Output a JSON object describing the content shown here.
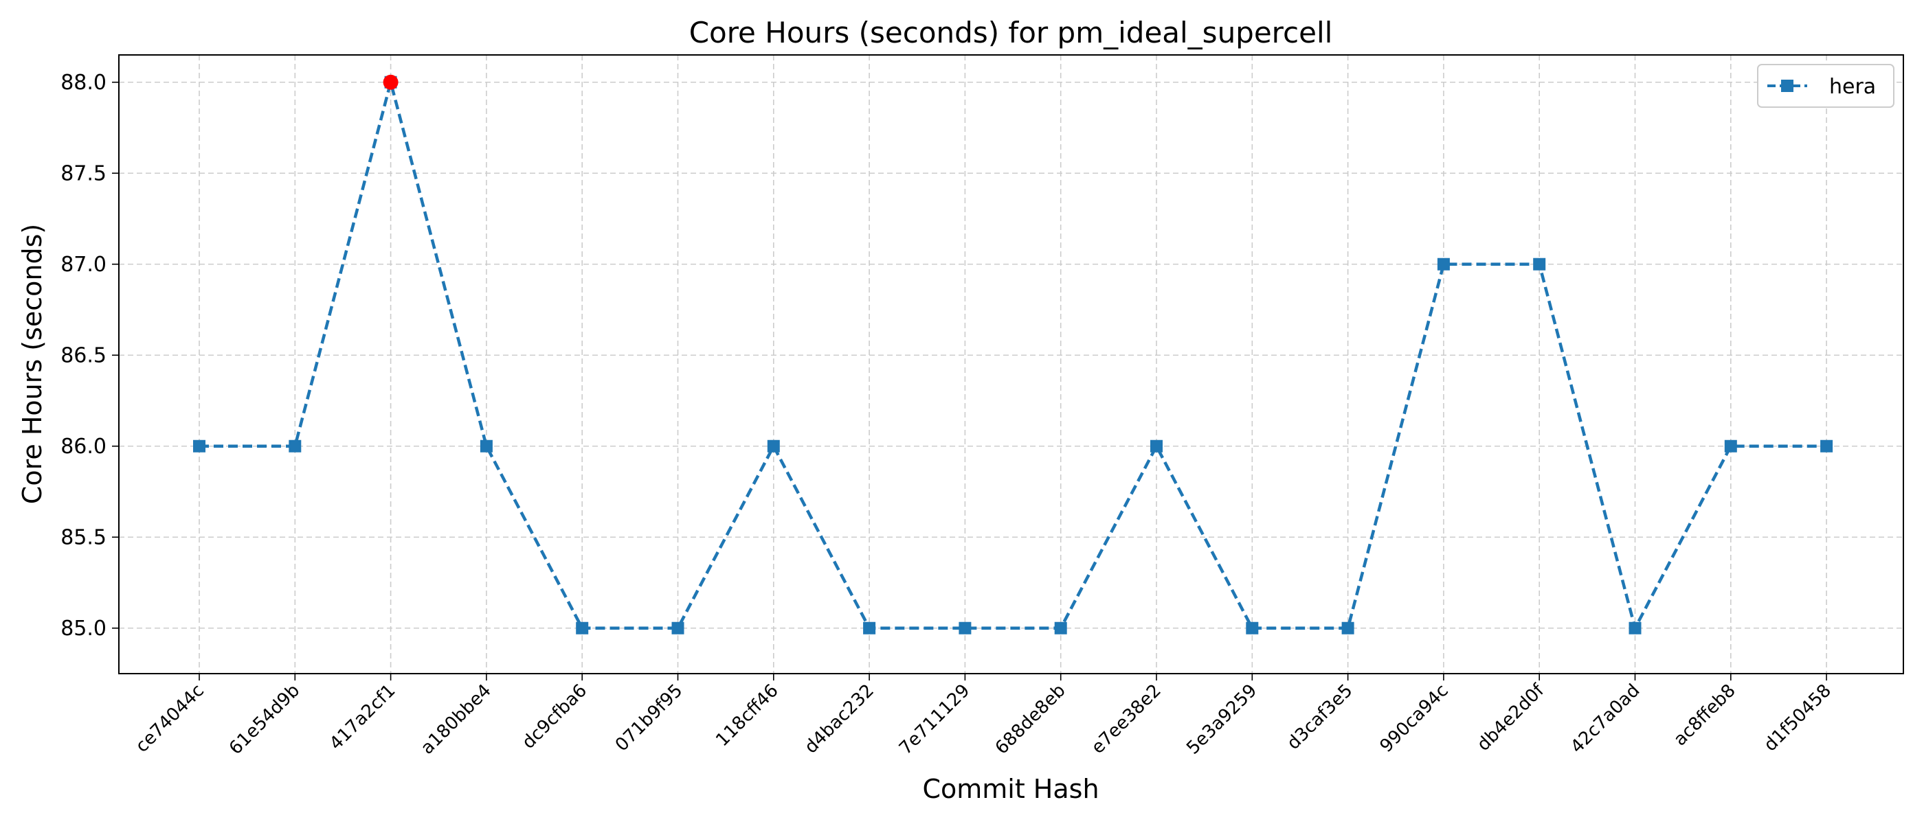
{
  "chart_data": {
    "type": "line",
    "title": "Core Hours (seconds) for pm_ideal_supercell",
    "xlabel": "Commit Hash",
    "ylabel": "Core Hours (seconds)",
    "categories": [
      "ce74044c",
      "61e54d9b",
      "417a2cf1",
      "a180bbe4",
      "dc9cfba6",
      "071b9f95",
      "118cff46",
      "d4bac232",
      "7e711129",
      "688de8eb",
      "e7ee38e2",
      "5e3a9259",
      "d3caf3e5",
      "990ca94c",
      "db4e2d0f",
      "42c7a0ad",
      "ac8ffeb8",
      "d1f50458"
    ],
    "series": [
      {
        "name": "hera",
        "values": [
          86.0,
          86.0,
          88.0,
          86.0,
          85.0,
          85.0,
          86.0,
          85.0,
          85.0,
          85.0,
          86.0,
          85.0,
          85.0,
          87.0,
          87.0,
          85.0,
          86.0,
          86.0
        ],
        "color": "#1f77b4",
        "linestyle": "dashed",
        "marker": "square"
      }
    ],
    "highlight": {
      "category": "417a2cf1",
      "value": 88.0,
      "color": "#ff0000",
      "marker": "circle"
    },
    "ylim": [
      84.75,
      88.15
    ],
    "yticks": [
      "85.0",
      "85.5",
      "86.0",
      "86.5",
      "87.0",
      "87.5",
      "88.0"
    ],
    "grid": true,
    "legend_position": "top-right"
  }
}
